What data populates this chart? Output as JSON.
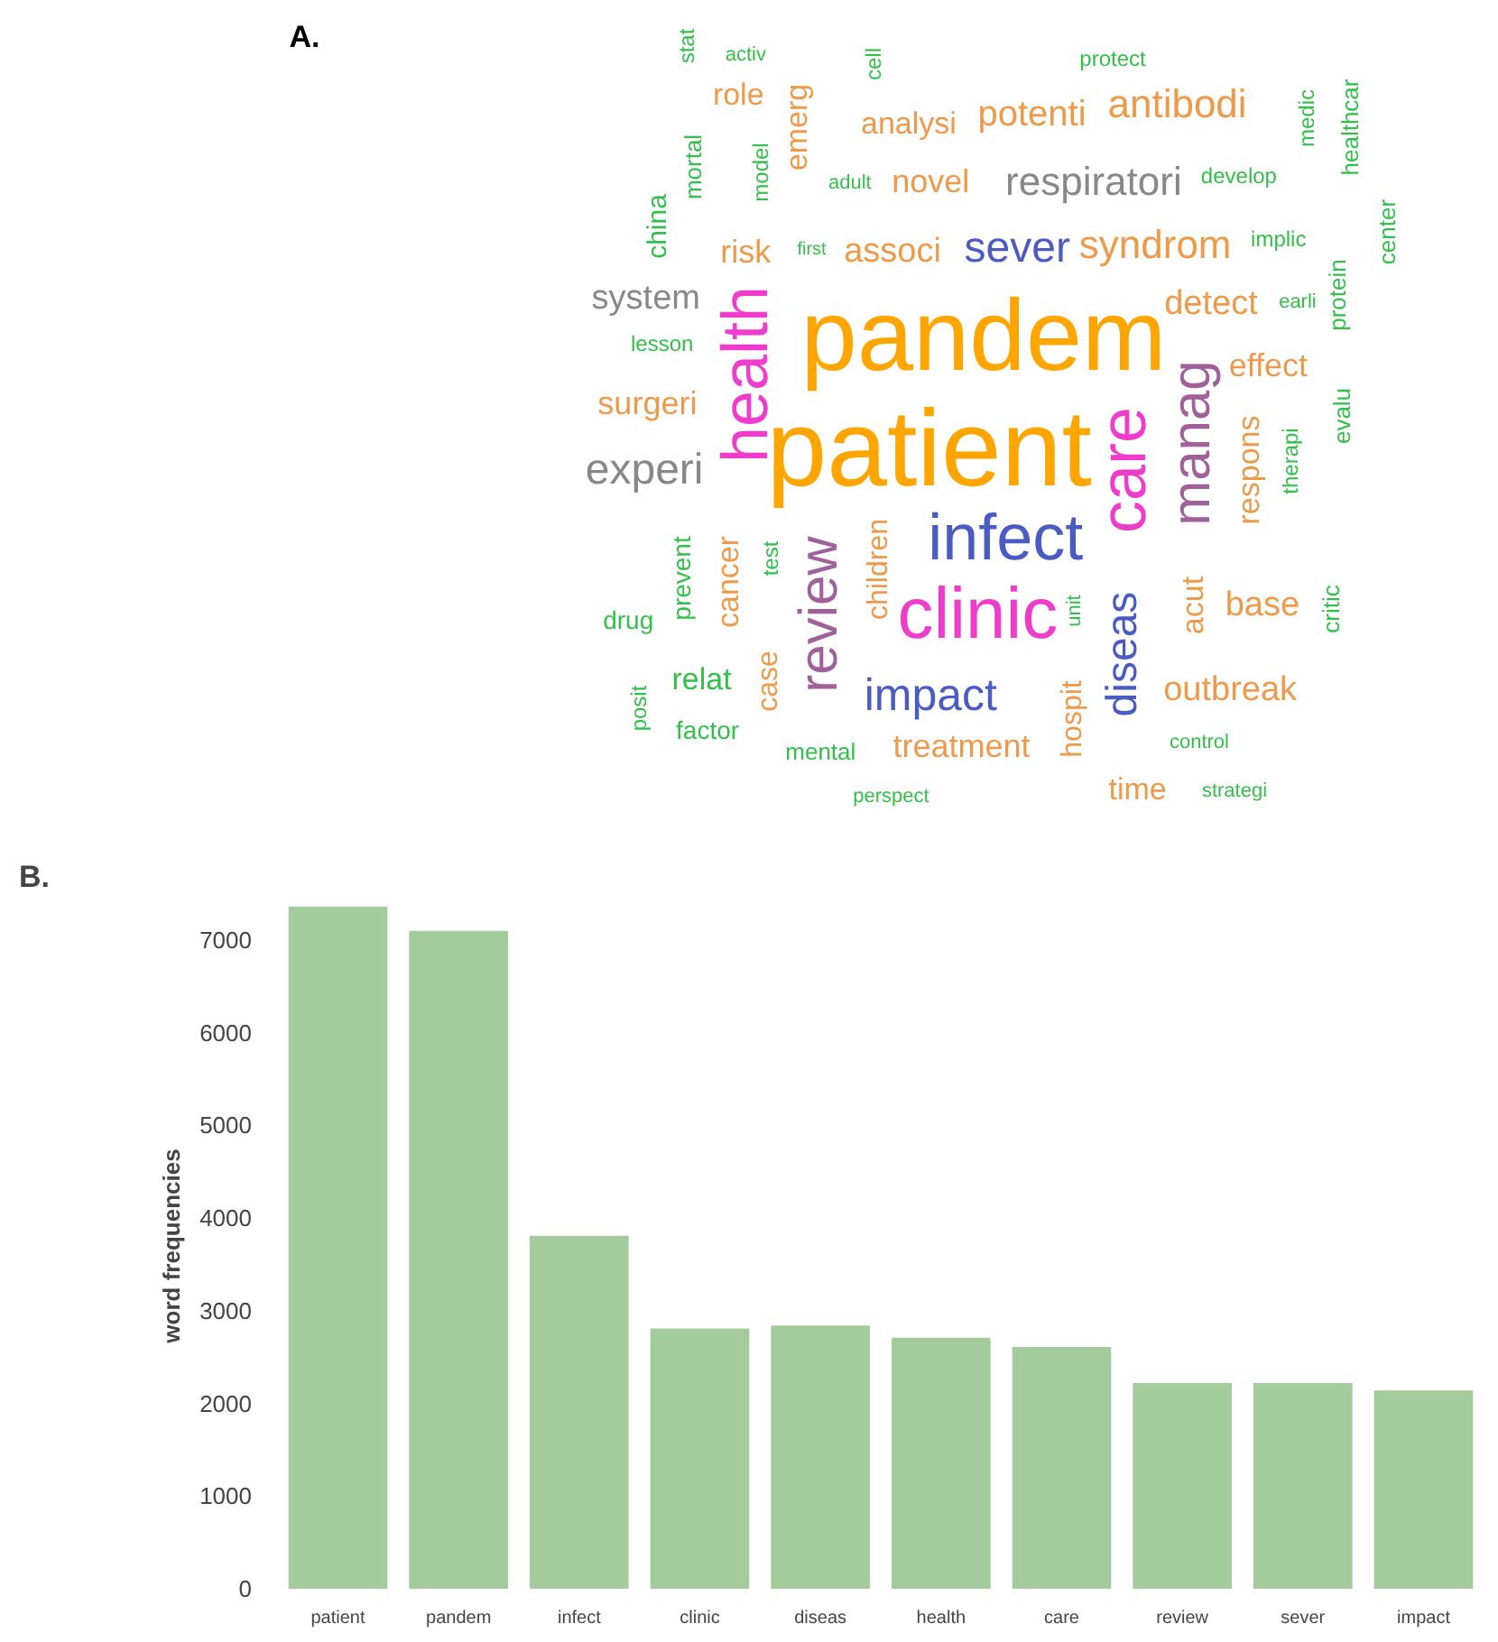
{
  "chart_data": [
    {
      "type": "other",
      "title": "A.",
      "annotations": [
        "stat",
        "activ",
        "cell",
        "protect",
        "role",
        "emerg",
        "analysi",
        "potenti",
        "antibodi",
        "medic",
        "healthcar",
        "china",
        "mortal",
        "model",
        "adult",
        "novel",
        "respiratori",
        "develop",
        "center",
        "implic",
        "risk",
        "first",
        "associ",
        "sever",
        "syndrom",
        "system",
        "protein",
        "detect",
        "earli",
        "lesson",
        "pandem",
        "health",
        "effect",
        "evalu",
        "surgeri",
        "patient",
        "care",
        "manag",
        "respons",
        "therapi",
        "experi",
        "infect",
        "prevent",
        "cancer",
        "test",
        "review",
        "children",
        "clinic",
        "drug",
        "unit",
        "diseas",
        "acut",
        "base",
        "critic",
        "posit",
        "relat",
        "case",
        "impact",
        "hospit",
        "outbreak",
        "factor",
        "mental",
        "treatment",
        "control",
        "time",
        "perspect",
        "strategi"
      ],
      "colors": [
        "#33c04a",
        "#33c04a",
        "#33c04a",
        "#33c04a",
        "#ef9a4a",
        "#ef9a4a",
        "#ef9a4a",
        "#ef9a4a",
        "#ef9a4a",
        "#33c04a",
        "#33c04a",
        "#33c04a",
        "#33c04a",
        "#33c04a",
        "#33c04a",
        "#ef9a4a",
        "#888888",
        "#33c04a",
        "#33c04a",
        "#33c04a",
        "#ef9a4a",
        "#33c04a",
        "#ef9a4a",
        "#4a5bc4",
        "#ef9a4a",
        "#888888",
        "#33c04a",
        "#ef9a4a",
        "#33c04a",
        "#33c04a",
        "#ffa500",
        "#f03ccc",
        "#ef9a4a",
        "#33c04a",
        "#ef9a4a",
        "#ffa500",
        "#f03ccc",
        "#a0609a",
        "#ef9a4a",
        "#33c04a",
        "#888888",
        "#4a5bc4",
        "#33c04a",
        "#ef9a4a",
        "#33c04a",
        "#a0609a",
        "#ef9a4a",
        "#f03ccc",
        "#33c04a",
        "#33c04a",
        "#4a5bc4",
        "#ef9a4a",
        "#ef9a4a",
        "#33c04a",
        "#33c04a",
        "#33c04a",
        "#ef9a4a",
        "#4a5bc4",
        "#ef9a4a",
        "#ef9a4a",
        "#33c04a",
        "#33c04a",
        "#ef9a4a",
        "#33c04a",
        "#ef9a4a",
        "#33c04a",
        "#33c04a"
      ]
    },
    {
      "type": "bar",
      "title": "B.",
      "ylabel": "word frequencies",
      "categories": [
        "patient",
        "pandem",
        "infect",
        "clinic",
        "diseas",
        "health",
        "care",
        "review",
        "sever",
        "impact"
      ],
      "values": [
        7360,
        7100,
        3810,
        2810,
        2840,
        2710,
        2610,
        2220,
        2220,
        2140
      ],
      "color": "#a3cb9b",
      "ylim": [
        0,
        7400
      ],
      "yticks": [
        0,
        1000,
        2000,
        3000,
        4000,
        5000,
        6000,
        7000
      ]
    }
  ]
}
